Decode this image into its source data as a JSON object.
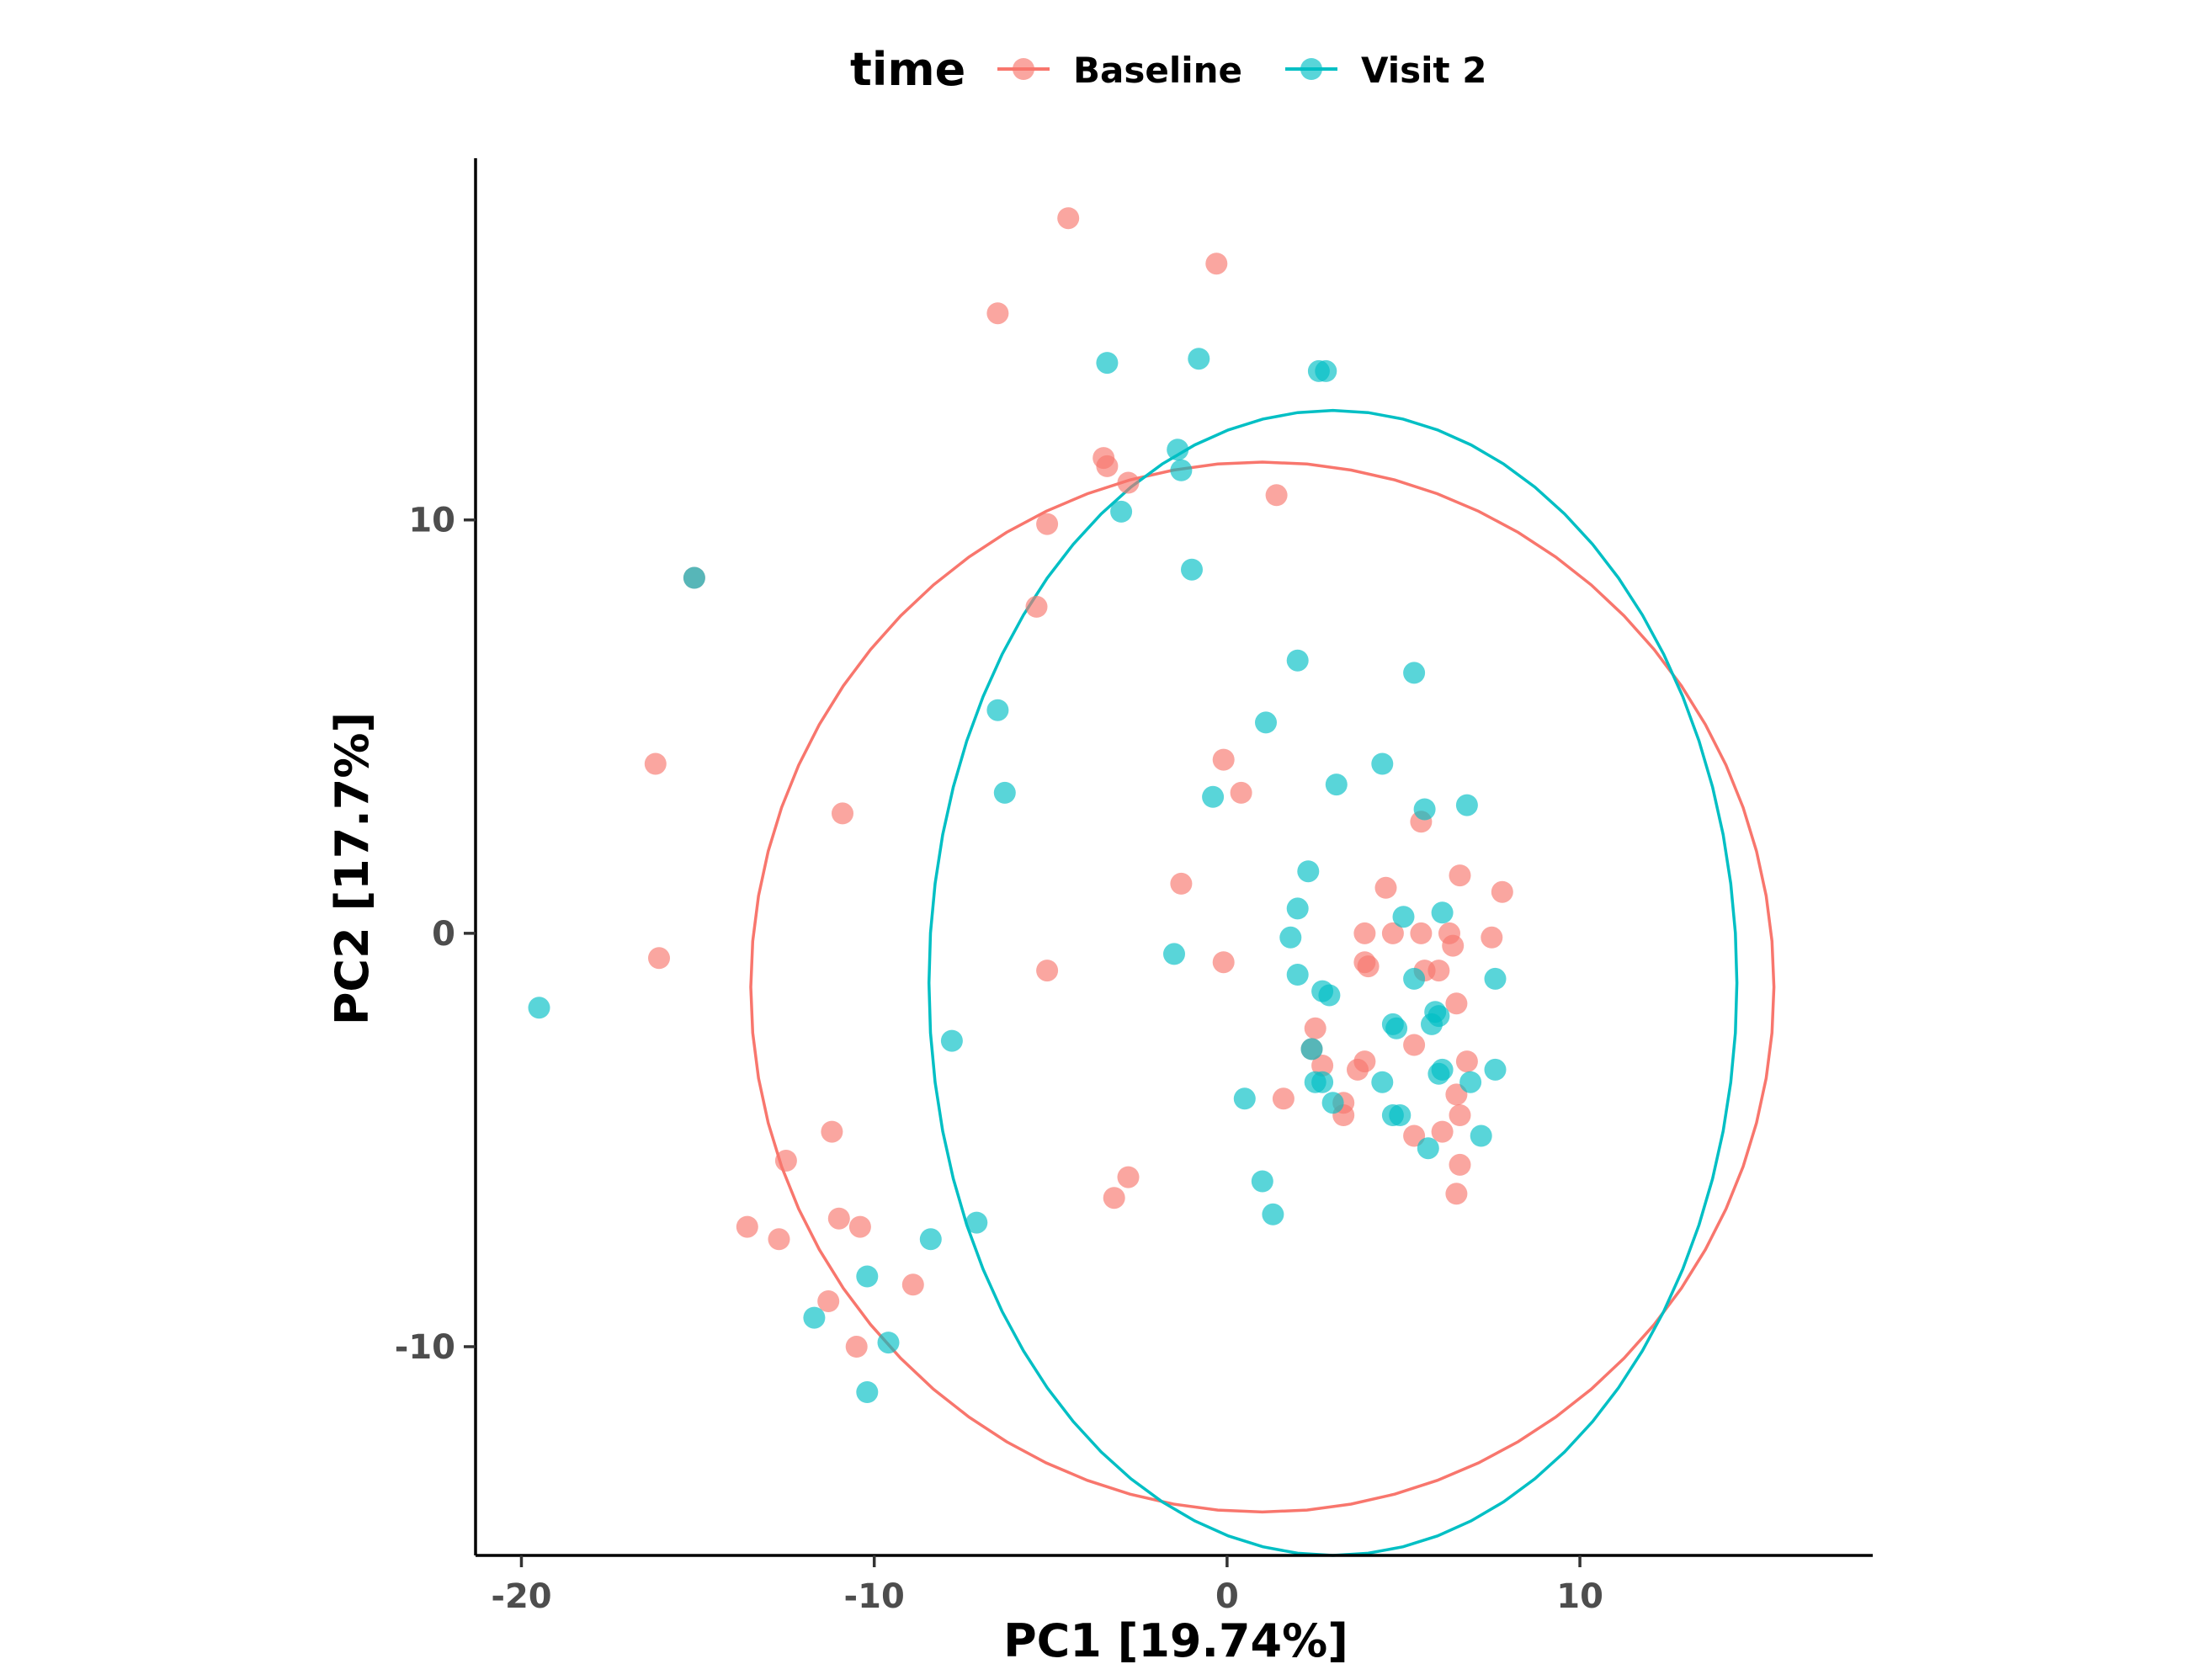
{
  "chart_data": {
    "type": "scatter",
    "title": "",
    "xlabel": "PC1 [19.74%]",
    "ylabel": "PC2 [17.7%]",
    "xlim": [
      -21.3,
      18.3
    ],
    "ylim": [
      -15.05,
      18.75
    ],
    "x_ticks": [
      -20,
      -10,
      0,
      10
    ],
    "y_ticks": [
      -10,
      0,
      10
    ],
    "x_tick_labels": [
      "-20",
      "-10",
      "0",
      "10"
    ],
    "y_tick_labels": [
      "-10",
      "0",
      "10"
    ],
    "grid": false,
    "legend": {
      "title": "time",
      "position": "top",
      "entries": [
        "Baseline",
        "Visit 2"
      ]
    },
    "series": [
      {
        "name": "Baseline",
        "color": "#F8766D",
        "ellipse": {
          "center": [
            1.0,
            -1.3
          ],
          "radius_x": 14.5,
          "radius_y": 12.7
        },
        "points": [
          [
            -4.5,
            17.3
          ],
          [
            -0.3,
            16.2
          ],
          [
            -6.5,
            15.0
          ],
          [
            -3.5,
            11.5
          ],
          [
            -3.4,
            11.3
          ],
          [
            -2.8,
            10.9
          ],
          [
            1.4,
            10.6
          ],
          [
            -5.1,
            9.9
          ],
          [
            -15.1,
            8.6
          ],
          [
            -5.4,
            7.9
          ],
          [
            -16.2,
            4.1
          ],
          [
            -0.1,
            4.2
          ],
          [
            0.4,
            3.4
          ],
          [
            -10.9,
            2.9
          ],
          [
            5.5,
            2.7
          ],
          [
            6.6,
            1.4
          ],
          [
            7.8,
            1.0
          ],
          [
            -1.3,
            1.2
          ],
          [
            4.5,
            1.1
          ],
          [
            -16.1,
            -0.6
          ],
          [
            -0.1,
            -0.7
          ],
          [
            -5.1,
            -0.9
          ],
          [
            3.9,
            0.0
          ],
          [
            4.7,
            0.0
          ],
          [
            5.5,
            0.0
          ],
          [
            6.3,
            0.0
          ],
          [
            7.5,
            -0.1
          ],
          [
            6.4,
            -0.3
          ],
          [
            3.9,
            -0.7
          ],
          [
            4.0,
            -0.8
          ],
          [
            5.6,
            -0.9
          ],
          [
            6.0,
            -0.9
          ],
          [
            2.5,
            -2.3
          ],
          [
            2.4,
            -2.8
          ],
          [
            6.5,
            -1.7
          ],
          [
            5.3,
            -2.7
          ],
          [
            2.7,
            -3.2
          ],
          [
            3.9,
            -3.1
          ],
          [
            3.7,
            -3.3
          ],
          [
            6.8,
            -3.1
          ],
          [
            1.6,
            -4.0
          ],
          [
            3.3,
            -4.1
          ],
          [
            3.3,
            -4.4
          ],
          [
            6.5,
            -3.9
          ],
          [
            6.6,
            -4.4
          ],
          [
            6.1,
            -4.8
          ],
          [
            5.3,
            -4.9
          ],
          [
            -11.2,
            -4.8
          ],
          [
            -12.5,
            -5.5
          ],
          [
            6.6,
            -5.6
          ],
          [
            -2.8,
            -5.9
          ],
          [
            -3.2,
            -6.4
          ],
          [
            6.5,
            -6.3
          ],
          [
            -11.0,
            -6.9
          ],
          [
            -10.4,
            -7.1
          ],
          [
            -13.6,
            -7.1
          ],
          [
            -12.7,
            -7.4
          ],
          [
            -8.9,
            -8.5
          ],
          [
            -11.3,
            -8.9
          ],
          [
            -10.5,
            -10.0
          ]
        ]
      },
      {
        "name": "Visit 2",
        "color": "#00BFC4",
        "ellipse": {
          "center": [
            3.0,
            -1.2
          ],
          "radius_x": 11.45,
          "radius_y": 13.85
        },
        "points": [
          [
            -3.4,
            13.8
          ],
          [
            -0.8,
            13.9
          ],
          [
            2.6,
            13.6
          ],
          [
            2.8,
            13.6
          ],
          [
            -1.4,
            11.7
          ],
          [
            -1.3,
            11.2
          ],
          [
            -3.0,
            10.2
          ],
          [
            -15.1,
            8.6
          ],
          [
            -1.0,
            8.8
          ],
          [
            2.0,
            6.6
          ],
          [
            5.3,
            6.3
          ],
          [
            -6.5,
            5.4
          ],
          [
            1.1,
            5.1
          ],
          [
            4.4,
            4.1
          ],
          [
            3.1,
            3.6
          ],
          [
            -6.3,
            3.4
          ],
          [
            -0.4,
            3.3
          ],
          [
            5.6,
            3.0
          ],
          [
            6.8,
            3.1
          ],
          [
            2.3,
            1.5
          ],
          [
            2.0,
            0.6
          ],
          [
            6.1,
            0.5
          ],
          [
            5.0,
            0.4
          ],
          [
            1.8,
            -0.1
          ],
          [
            -1.5,
            -0.5
          ],
          [
            2.0,
            -1.0
          ],
          [
            5.3,
            -1.1
          ],
          [
            7.6,
            -1.1
          ],
          [
            2.7,
            -1.4
          ],
          [
            2.9,
            -1.5
          ],
          [
            -19.5,
            -1.8
          ],
          [
            5.9,
            -1.9
          ],
          [
            6.0,
            -2.0
          ],
          [
            4.7,
            -2.2
          ],
          [
            4.8,
            -2.3
          ],
          [
            5.8,
            -2.2
          ],
          [
            -7.8,
            -2.6
          ],
          [
            2.4,
            -2.8
          ],
          [
            6.1,
            -3.3
          ],
          [
            6.0,
            -3.4
          ],
          [
            7.6,
            -3.3
          ],
          [
            2.5,
            -3.6
          ],
          [
            2.7,
            -3.6
          ],
          [
            4.4,
            -3.6
          ],
          [
            6.9,
            -3.6
          ],
          [
            0.5,
            -4.0
          ],
          [
            3.0,
            -4.1
          ],
          [
            4.7,
            -4.4
          ],
          [
            4.9,
            -4.4
          ],
          [
            7.2,
            -4.9
          ],
          [
            5.7,
            -5.2
          ],
          [
            1.0,
            -6.0
          ],
          [
            1.3,
            -6.8
          ],
          [
            -7.1,
            -7.0
          ],
          [
            -8.4,
            -7.4
          ],
          [
            -10.2,
            -8.3
          ],
          [
            -11.7,
            -9.3
          ],
          [
            -9.6,
            -9.9
          ],
          [
            -10.2,
            -11.1
          ]
        ]
      }
    ]
  }
}
